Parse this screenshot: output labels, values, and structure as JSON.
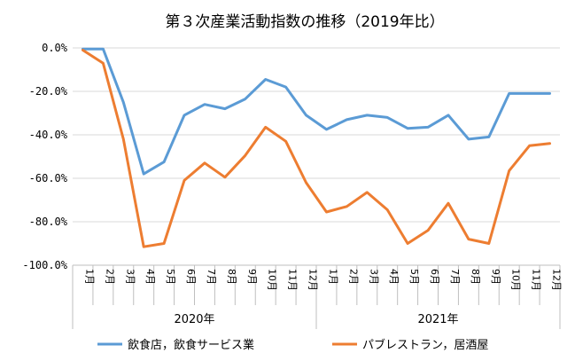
{
  "chart_data": {
    "type": "line",
    "title": "第３次産業活動指数の推移（2019年比）",
    "categories": [
      "1月",
      "2月",
      "3月",
      "4月",
      "5月",
      "6月",
      "7月",
      "8月",
      "9月",
      "10月",
      "11月",
      "12月",
      "1月",
      "2月",
      "3月",
      "4月",
      "5月",
      "6月",
      "7月",
      "8月",
      "9月",
      "10月",
      "11月",
      "12月"
    ],
    "year_groups": [
      {
        "label": "2020年",
        "start": 0,
        "count": 12
      },
      {
        "label": "2021年",
        "start": 12,
        "count": 12
      }
    ],
    "ylim": [
      -100,
      0
    ],
    "y_ticks": [
      0,
      -20,
      -40,
      -60,
      -80,
      -100
    ],
    "y_tick_labels": [
      "0.0%",
      "-20.0%",
      "-40.0%",
      "-60.0%",
      "-80.0%",
      "-100.0%"
    ],
    "grid": true,
    "legend_position": "bottom",
    "series": [
      {
        "name": "飲食店，飲食サービス業",
        "color": "#5B9BD5",
        "values": [
          -0.5,
          -0.5,
          -25,
          -58,
          -52.5,
          -31,
          -26,
          -28,
          -23.5,
          -14.5,
          -18,
          -31,
          -37.5,
          -33,
          -31,
          -32,
          -37,
          -36.5,
          -31,
          -42,
          -41,
          -21,
          -21,
          -21
        ]
      },
      {
        "name": "パブレストラン，居酒屋",
        "color": "#ED7D31",
        "values": [
          -1,
          -7,
          -42,
          -91.5,
          -90,
          -61,
          -53,
          -59.5,
          -49.5,
          -36.5,
          -43,
          -62,
          -75.5,
          -73,
          -66.5,
          -74.5,
          -90,
          -84,
          -71.5,
          -88,
          -90,
          -56.5,
          -45,
          -44
        ]
      }
    ]
  }
}
